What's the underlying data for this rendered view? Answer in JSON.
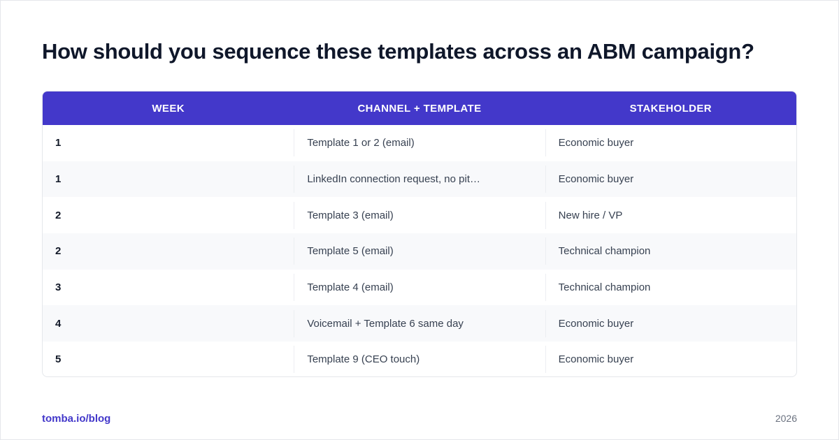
{
  "title": "How should you sequence these templates across an ABM campaign?",
  "table": {
    "headers": [
      "WEEK",
      "CHANNEL + TEMPLATE",
      "STAKEHOLDER"
    ],
    "rows": [
      [
        "1",
        "Template 1 or 2 (email)",
        "Economic buyer"
      ],
      [
        "1",
        "LinkedIn connection request, no pit…",
        "Economic buyer"
      ],
      [
        "2",
        "Template 3 (email)",
        "New hire / VP"
      ],
      [
        "2",
        "Template 5 (email)",
        "Technical champion"
      ],
      [
        "3",
        "Template 4 (email)",
        "Technical champion"
      ],
      [
        "4",
        "Voicemail + Template 6 same day",
        "Economic buyer"
      ],
      [
        "5",
        "Template 9 (CEO touch)",
        "Economic buyer"
      ]
    ]
  },
  "footer": {
    "source": "tomba.io/blog",
    "year": "2026"
  },
  "colors": {
    "header_bg": "#4338ca",
    "accent": "#4338ca"
  }
}
